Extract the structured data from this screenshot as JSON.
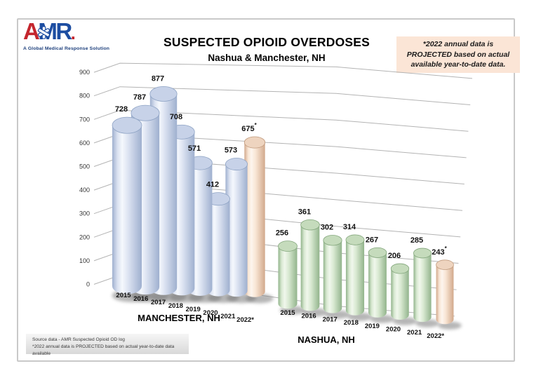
{
  "logo": {
    "letter_a": "A",
    "letters_mr": "MR",
    "period": ".",
    "tagline": "A Global Medical Response Solution",
    "red": "#c4262e",
    "blue": "#1c4da1"
  },
  "chart_data": {
    "type": "bar",
    "variant": "3d-cylinder",
    "title": "SUSPECTED OPIOID OVERDOSES",
    "subtitle": "Nashua & Manchester, NH",
    "categories": [
      "2015",
      "2016",
      "2017",
      "2018",
      "2019",
      "2020",
      "2021",
      "2022*"
    ],
    "series": [
      {
        "name": "MANCHESTER, NH",
        "values": [
          728,
          787,
          877,
          708,
          571,
          412,
          573,
          675
        ],
        "color_key": "manchester"
      },
      {
        "name": "NASHUA, NH",
        "values": [
          256,
          361,
          302,
          314,
          267,
          206,
          285,
          243
        ],
        "color_key": "nashua"
      }
    ],
    "projected_last_category": true,
    "y_axis": {
      "min": 0,
      "max": 900,
      "step": 100
    },
    "grid": true,
    "legend": "series names below each bar row",
    "colors": {
      "manchester": {
        "edge": "#9fb0cf",
        "body": "#dbe2f1",
        "highlight": "#f5f8fd",
        "top": "#c7d2e8",
        "top_edge": "#8ea3c4"
      },
      "nashua": {
        "edge": "#92b48c",
        "body": "#d9e9d2",
        "highlight": "#f0f7ec",
        "top": "#c5dbbc",
        "top_edge": "#83a67c"
      },
      "projected": {
        "edge": "#d2a98c",
        "body": "#f8e5d4",
        "highlight": "#fdf5ee",
        "top": "#eed4bf",
        "top_edge": "#c19b7e"
      },
      "gridline": "#b3b3b3",
      "axis_text": "#333333",
      "label_text": "#111111"
    }
  },
  "note_box": {
    "text": "*2022 annual data is PROJECTED based on actual available year-to-date data.",
    "bg": "#fbe5d6"
  },
  "source_box": {
    "lines": [
      "Source data - AMR Suspected Opioid OD log",
      "*2022 annual data is PROJECTED based on actual year-to-date data available"
    ]
  }
}
